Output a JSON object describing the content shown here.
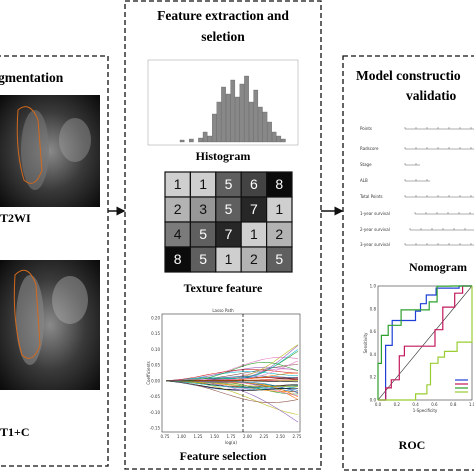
{
  "segmentation": {
    "title": "gmentation",
    "images": [
      {
        "label": "T2WI"
      },
      {
        "label": "T1+C"
      }
    ]
  },
  "features": {
    "title_lines": [
      "Feature extraction  and",
      "seletion"
    ],
    "histogram": {
      "label": "Histogram"
    },
    "texture": {
      "grid": [
        [
          1,
          1,
          5,
          6,
          8
        ],
        [
          2,
          3,
          5,
          7,
          1
        ],
        [
          4,
          5,
          7,
          1,
          2
        ],
        [
          8,
          5,
          1,
          2,
          5
        ]
      ],
      "label": "Texture feature"
    },
    "lasso": {
      "title": "Lasso Path",
      "xlabel": "log(α)",
      "ylabel": "Coefficients",
      "xticks": [
        "0.75",
        "1.00",
        "1.25",
        "1.50",
        "1.75",
        "2.00",
        "2.25",
        "2.50",
        "2.75"
      ],
      "yticks": [
        "0.20",
        "0.15",
        "0.10",
        "0.05",
        "0.00",
        "-0.05",
        "-0.10",
        "-0.15"
      ],
      "label": "Feature selection"
    }
  },
  "model": {
    "title_lines": [
      "Model constructio",
      "validatio"
    ],
    "nomogram": {
      "rows": [
        "Points",
        "Radscore",
        "Stage",
        "ALB",
        "Total Points",
        "1-year survival",
        "2-year survival",
        "3-year survival"
      ],
      "label": "Nomogram"
    },
    "roc": {
      "ylabel": "Sensitivity",
      "xlabel": "1-Specificity",
      "ticks": [
        "0.0",
        "0.2",
        "0.4",
        "0.6",
        "0.8",
        "1.0"
      ],
      "label": "ROC"
    }
  }
}
